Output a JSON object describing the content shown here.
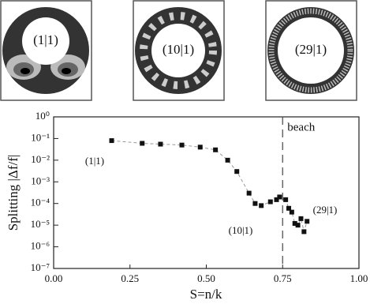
{
  "chart_data": {
    "type": "scatter",
    "insets": [
      {
        "label": "(1|1)"
      },
      {
        "label": "(10|1)"
      },
      {
        "label": "(29|1)"
      }
    ],
    "xlabel": "S=n/k",
    "ylabel": "Splitting |Δf/f|",
    "log_y": true,
    "xlim": [
      0,
      1
    ],
    "ylim": [
      1e-07,
      1
    ],
    "xticks": [
      {
        "value": 0,
        "label": "0.00"
      },
      {
        "value": 0.25,
        "label": "0.25"
      },
      {
        "value": 0.5,
        "label": "0.50"
      },
      {
        "value": 0.75,
        "label": "0.75"
      },
      {
        "value": 1,
        "label": "1.00"
      }
    ],
    "yticks": [
      {
        "value": 1,
        "label": "10⁰"
      },
      {
        "value": 0.1,
        "label": "10⁻¹"
      },
      {
        "value": 0.01,
        "label": "10⁻²"
      },
      {
        "value": 0.001,
        "label": "10⁻³"
      },
      {
        "value": 0.0001,
        "label": "10⁻⁴"
      },
      {
        "value": 1e-05,
        "label": "10⁻⁵"
      },
      {
        "value": 1e-06,
        "label": "10⁻⁶"
      },
      {
        "value": 1e-07,
        "label": "10⁻⁷"
      }
    ],
    "series": [
      {
        "color": "#111111",
        "x": [
          0.19,
          0.29,
          0.35,
          0.42,
          0.48,
          0.53,
          0.57,
          0.6,
          0.64,
          0.66,
          0.68,
          0.71,
          0.73,
          0.74,
          0.76,
          0.77,
          0.78,
          0.79,
          0.8,
          0.81,
          0.82,
          0.83
        ],
        "values": [
          0.08,
          0.06,
          0.055,
          0.05,
          0.04,
          0.03,
          0.01,
          0.003,
          0.0003,
          0.0001,
          8e-05,
          0.00012,
          0.00015,
          0.0002,
          0.00015,
          6e-05,
          4e-05,
          1.2e-05,
          1e-05,
          2e-05,
          5e-06,
          1.5e-05
        ]
      }
    ],
    "vline": {
      "x": 0.75,
      "label": "beach"
    },
    "annotations": [
      "(1|1)",
      "(10|1)",
      "(29|1)"
    ]
  }
}
